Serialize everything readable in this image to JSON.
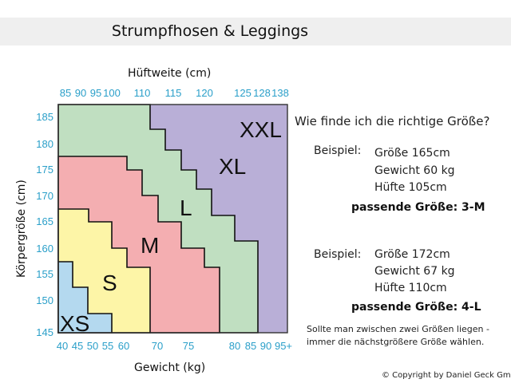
{
  "header": {
    "title": "Strumpfhosen & Leggings"
  },
  "chart": {
    "top_axis_label": "Hüftweite (cm)",
    "bottom_axis_label": "Gewicht (kg)",
    "left_axis_label": "Körpergröße (cm)",
    "top_ticks": [
      "85",
      "90",
      "95",
      "100",
      "110",
      "115",
      "120",
      "125",
      "128",
      "138"
    ],
    "bottom_ticks": [
      "40",
      "45",
      "50",
      "55",
      "60",
      "70",
      "75",
      "80",
      "85",
      "90",
      "95+"
    ],
    "left_ticks": [
      "185",
      "180",
      "175",
      "170",
      "165",
      "160",
      "155",
      "150",
      "145"
    ],
    "regions": [
      {
        "label": "XS",
        "color": "#b4d9ef"
      },
      {
        "label": "S",
        "color": "#fdf5a7"
      },
      {
        "label": "M",
        "color": "#f4aeb1"
      },
      {
        "label": "L",
        "color": "#c0dfc1"
      },
      {
        "label": "XL",
        "color": "#b9afd7"
      },
      {
        "label": "XXL",
        "color": "#b9afd7"
      }
    ],
    "tick_color": "#2a9fc9"
  },
  "info": {
    "question": "Wie finde ich die richtige Größe?",
    "examples": [
      {
        "label": "Beispiel:",
        "height": "Größe 165cm",
        "weight": "Gewicht 60 kg",
        "hip": "Hüfte 105cm",
        "result": "passende Größe: 3-M"
      },
      {
        "label": "Beispiel:",
        "height": "Größe 172cm",
        "weight": "Gewicht 67 kg",
        "hip": "Hüfte 110cm",
        "result": "passende Größe: 4-L"
      }
    ],
    "note_line1": "Sollte man zwischen zwei Größen liegen -",
    "note_line2": "immer die nächstgrößere Größe wählen."
  },
  "footer": {
    "copyright": "© Copyright by Daniel Geck GmbH"
  }
}
